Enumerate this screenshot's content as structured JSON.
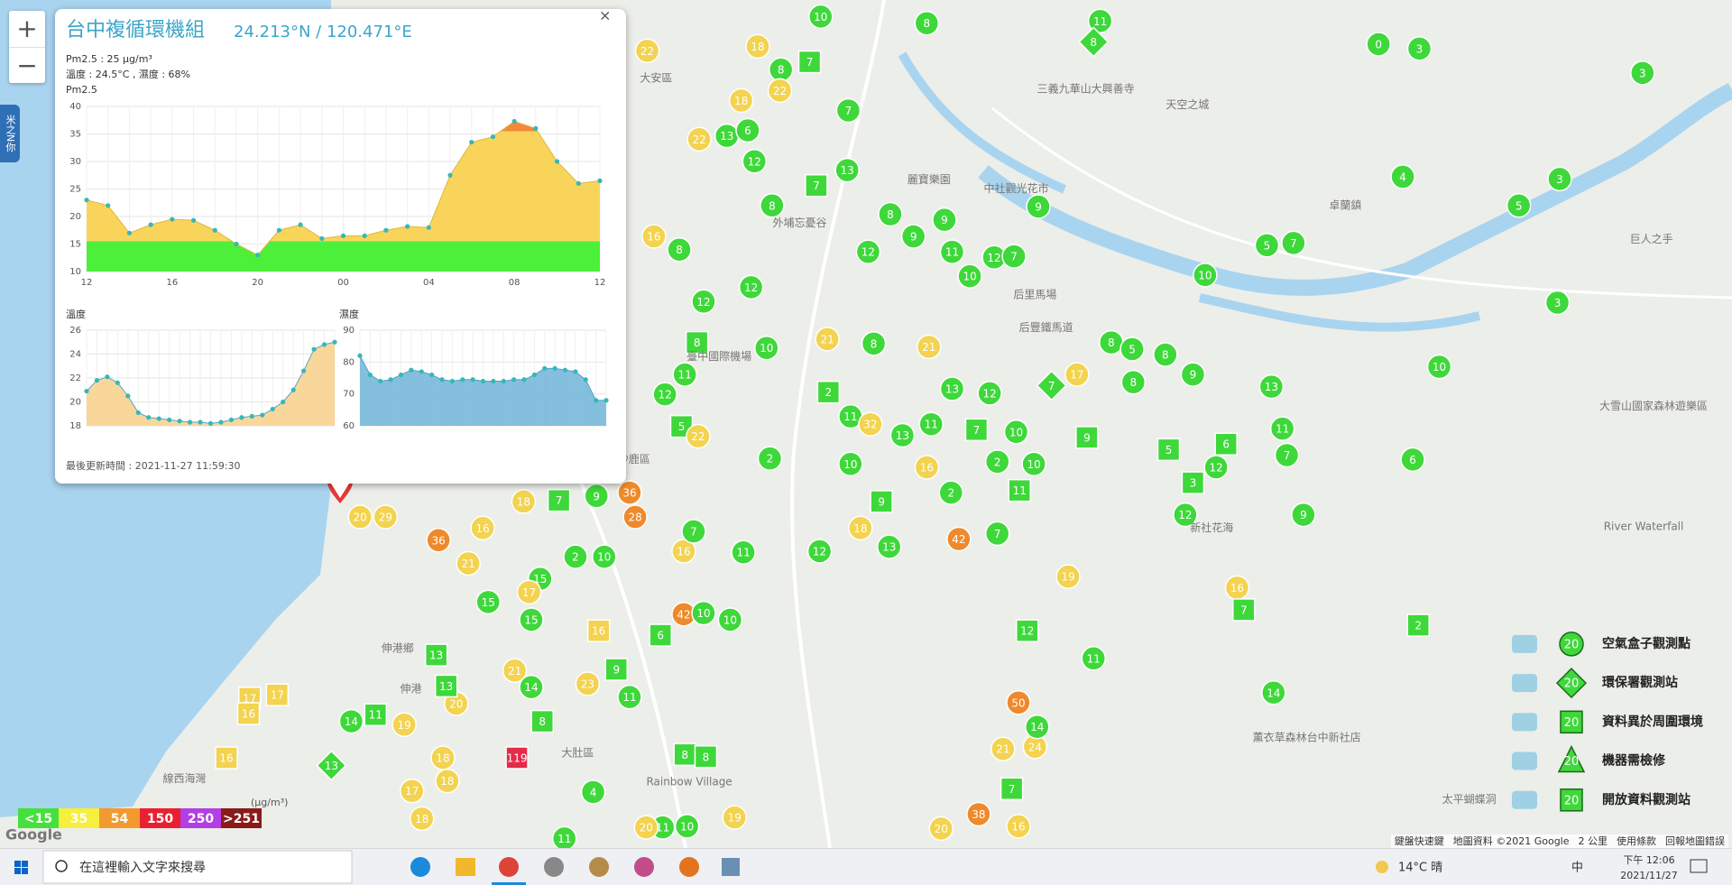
{
  "side_tab": "米之N你",
  "zoom": [
    "+",
    "−"
  ],
  "popup": {
    "title": "台中複循環機組",
    "coords": "24.213°N / 120.471°E",
    "lines": [
      "Pm2.5 : 25 μg/m³",
      "溫度 : 24.5°C , 濕度 : 68%"
    ],
    "charts": [
      {
        "type": "area",
        "title": "Pm2.5",
        "categories": [
          "12",
          null,
          null,
          null,
          "16",
          null,
          null,
          null,
          "20",
          null,
          null,
          null,
          "00",
          null,
          null,
          null,
          "04",
          null,
          null,
          null,
          "08",
          null,
          null,
          null,
          "12"
        ],
        "values": [
          23,
          22,
          17,
          18.5,
          19.5,
          19.3,
          17.5,
          15,
          13,
          17.5,
          18.5,
          16,
          16.5,
          16.5,
          17.5,
          18.2,
          18,
          27.5,
          33.5,
          34.5,
          37.3,
          36,
          30,
          26,
          26.5
        ],
        "ylim": [
          10,
          40
        ],
        "yticks": [
          10,
          15,
          20,
          25,
          30,
          35,
          40
        ],
        "colors": [
          "#4cf03a",
          "#f8d55a",
          "#f3893a"
        ],
        "point_color": "#35b8b8",
        "grid": true
      },
      {
        "type": "area",
        "title": "溫度",
        "values": [
          20.9,
          21.8,
          22.1,
          21.6,
          20.5,
          19.1,
          18.7,
          18.6,
          18.5,
          18.4,
          18.3,
          18.3,
          18.2,
          18.3,
          18.5,
          18.7,
          18.8,
          18.9,
          19.4,
          20,
          21,
          22.6,
          24.4,
          24.8,
          25
        ],
        "ylim": [
          18,
          26
        ],
        "yticks": [
          18,
          20,
          22,
          24,
          26
        ],
        "color": "#f8d08a",
        "point_color": "#35b8b8",
        "grid": true
      },
      {
        "type": "area",
        "title": "濕度",
        "values": [
          82,
          76,
          74,
          74.5,
          76,
          77.5,
          77,
          76,
          74.5,
          74,
          74.5,
          74.5,
          74,
          74,
          74,
          74.5,
          74.5,
          76,
          78,
          78,
          77.5,
          77,
          74.5,
          68,
          68
        ],
        "ylim": [
          60,
          90
        ],
        "yticks": [
          60,
          70,
          80,
          90
        ],
        "color": "#6fb4d8",
        "point_color": "#35b8b8",
        "grid": true
      }
    ],
    "updated": "最後更新時間 : 2021-11-27 11:59:30"
  },
  "map_labels": [
    "大安區",
    "三義九華山大興善寺",
    "天空之城",
    "卓蘭鎮",
    "巨人之手",
    "麗寶樂園",
    "中社觀光花市",
    "外埔忘憂谷",
    "后里馬場",
    "后豐鐵馬道",
    "臺中國際機場",
    "沙鹿區",
    "大肚區",
    "伸港鄉",
    "伸港",
    "線西海灣",
    "新社花海",
    "大雪山國家森林遊樂區",
    "River Waterfall",
    "薰衣草森林台中新社店",
    "太平蝴蝶洞",
    "Rainbow Village"
  ],
  "map_markers": {
    "values": [
      10,
      8,
      11,
      8,
      0,
      3,
      3,
      22,
      18,
      8,
      7,
      22,
      7,
      18,
      22,
      13,
      6,
      12,
      13,
      7,
      8,
      9,
      4,
      3,
      5,
      8,
      9,
      9,
      12,
      11,
      12,
      7,
      10,
      5,
      7,
      10,
      3,
      16,
      8,
      12,
      12,
      10,
      21,
      8,
      21,
      8,
      10,
      8,
      5,
      8,
      9,
      17,
      8,
      7,
      11,
      12,
      2,
      11,
      32,
      13,
      11,
      13,
      12,
      7,
      10,
      9,
      5,
      22,
      2,
      10,
      16,
      10,
      2,
      13,
      11,
      6,
      12,
      7,
      5,
      3,
      6,
      12,
      9,
      36,
      28,
      9,
      7,
      18,
      29,
      20,
      36,
      16,
      21,
      15,
      17,
      15,
      2,
      10,
      16,
      7,
      11,
      12,
      18,
      13,
      42,
      7,
      2,
      11,
      9,
      19,
      16,
      7,
      12,
      11,
      14,
      2,
      13,
      20,
      13,
      19,
      14,
      11,
      13,
      17,
      16,
      17,
      16,
      18,
      18,
      17,
      18,
      21,
      14,
      119,
      4,
      11,
      8,
      23,
      11,
      9,
      16,
      42,
      10,
      10,
      50,
      38,
      21,
      24,
      14,
      7,
      10,
      11,
      20,
      19,
      8,
      8,
      6,
      15,
      16,
      20
    ],
    "colors": [
      "G",
      "G",
      "G",
      "G",
      "G",
      "G",
      "G",
      "Y",
      "Y",
      "G",
      "G",
      "Y",
      "G",
      "Y",
      "Y",
      "G",
      "G",
      "G",
      "G",
      "G",
      "G",
      "G",
      "G",
      "G",
      "G",
      "G",
      "G",
      "G",
      "G",
      "G",
      "G",
      "G",
      "G",
      "G",
      "G",
      "G",
      "G",
      "Y",
      "G",
      "G",
      "G",
      "G",
      "Y",
      "G",
      "Y",
      "G",
      "G",
      "G",
      "G",
      "G",
      "G",
      "Y",
      "G",
      "G",
      "G",
      "G",
      "G",
      "G",
      "Y",
      "G",
      "G",
      "G",
      "G",
      "G",
      "G",
      "G",
      "G",
      "Y",
      "G",
      "G",
      "Y",
      "G",
      "G",
      "G",
      "G",
      "G",
      "G",
      "G",
      "G",
      "G",
      "G",
      "G",
      "G",
      "O",
      "O",
      "G",
      "G",
      "Y",
      "Y",
      "Y",
      "O",
      "Y",
      "Y",
      "G",
      "Y",
      "G",
      "G",
      "G",
      "Y",
      "G",
      "G",
      "G",
      "Y",
      "G",
      "O",
      "G",
      "G",
      "G",
      "G",
      "Y",
      "Y",
      "G",
      "G",
      "G",
      "G",
      "G",
      "G",
      "Y",
      "G",
      "Y",
      "G",
      "G",
      "G",
      "Y",
      "Y",
      "Y",
      "Y",
      "Y",
      "Y",
      "Y",
      "Y",
      "Y",
      "G",
      "R",
      "G",
      "G",
      "G",
      "Y",
      "G",
      "G",
      "Y",
      "O",
      "G",
      "G",
      "O",
      "O",
      "Y",
      "Y",
      "G",
      "G",
      "G",
      "G",
      "Y",
      "Y",
      "G",
      "G",
      "G",
      "G",
      "Y",
      "Y"
    ]
  },
  "marker_colors": {
    "G": "#3ed83a",
    "Y": "#f3d34f",
    "O": "#ee8a2c",
    "R": "#e52b4a"
  },
  "scale_legend": {
    "unit": "(μg/m³)",
    "items": [
      {
        "label": "<15",
        "color": "#46e03c"
      },
      {
        "label": "35",
        "color": "#f7ef3e"
      },
      {
        "label": "54",
        "color": "#f39a2f"
      },
      {
        "label": "150",
        "color": "#e8202f"
      },
      {
        "label": "250",
        "color": "#b33ee6"
      },
      {
        "label": ">251",
        "color": "#8a1b1b"
      }
    ]
  },
  "station_legend": [
    {
      "label": "空氣盒子觀測點",
      "value": 20,
      "shape": "circle"
    },
    {
      "label": "環保署觀測站",
      "value": 20,
      "shape": "diamond"
    },
    {
      "label": "資料異於周圍環境",
      "value": 20,
      "shape": "square"
    },
    {
      "label": "機器需檢修",
      "value": 20,
      "shape": "triangle"
    },
    {
      "label": "開放資料觀測站",
      "value": 20,
      "shape": "square"
    }
  ],
  "attribution": [
    "鍵盤快速鍵",
    "地圖資料 ©2021 Google",
    "2 公里",
    "使用條款",
    "回報地圖錯誤"
  ],
  "google": "Google",
  "taskbar": {
    "search": "在這裡輸入文字來搜尋",
    "weather": "14°C 晴",
    "ime": "中",
    "time": "下午 12:06",
    "date": "2021/11/27"
  }
}
